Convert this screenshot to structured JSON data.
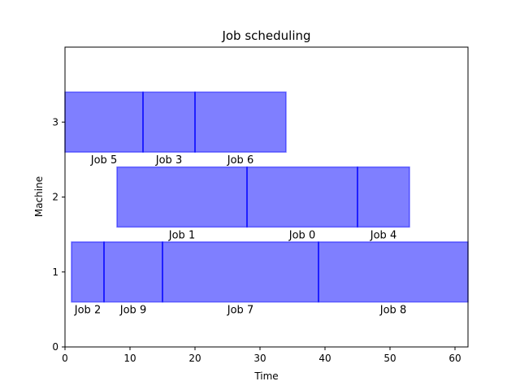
{
  "chart_data": {
    "type": "bar",
    "orientation": "horizontal-gantt",
    "title": "Job scheduling",
    "xlabel": "Time",
    "ylabel": "Machine",
    "xlim": [
      0,
      62
    ],
    "ylim": [
      0,
      4
    ],
    "xticks": [
      0,
      10,
      20,
      30,
      40,
      50,
      60
    ],
    "yticks": [
      0,
      1,
      2,
      3
    ],
    "grid": false,
    "bar_color": "#0000ff",
    "bar_alpha": 0.5,
    "tasks": [
      {
        "machine": 1,
        "label": "Job 2",
        "start": 1,
        "end": 6
      },
      {
        "machine": 1,
        "label": "Job 9",
        "start": 6,
        "end": 15
      },
      {
        "machine": 1,
        "label": "Job 7",
        "start": 15,
        "end": 39
      },
      {
        "machine": 1,
        "label": "Job 8",
        "start": 39,
        "end": 62
      },
      {
        "machine": 2,
        "label": "Job 1",
        "start": 8,
        "end": 28
      },
      {
        "machine": 2,
        "label": "Job 0",
        "start": 28,
        "end": 45
      },
      {
        "machine": 2,
        "label": "Job 4",
        "start": 45,
        "end": 53
      },
      {
        "machine": 3,
        "label": "Job 5",
        "start": 0,
        "end": 12
      },
      {
        "machine": 3,
        "label": "Job 3",
        "start": 12,
        "end": 20
      },
      {
        "machine": 3,
        "label": "Job 6",
        "start": 20,
        "end": 34
      }
    ]
  }
}
